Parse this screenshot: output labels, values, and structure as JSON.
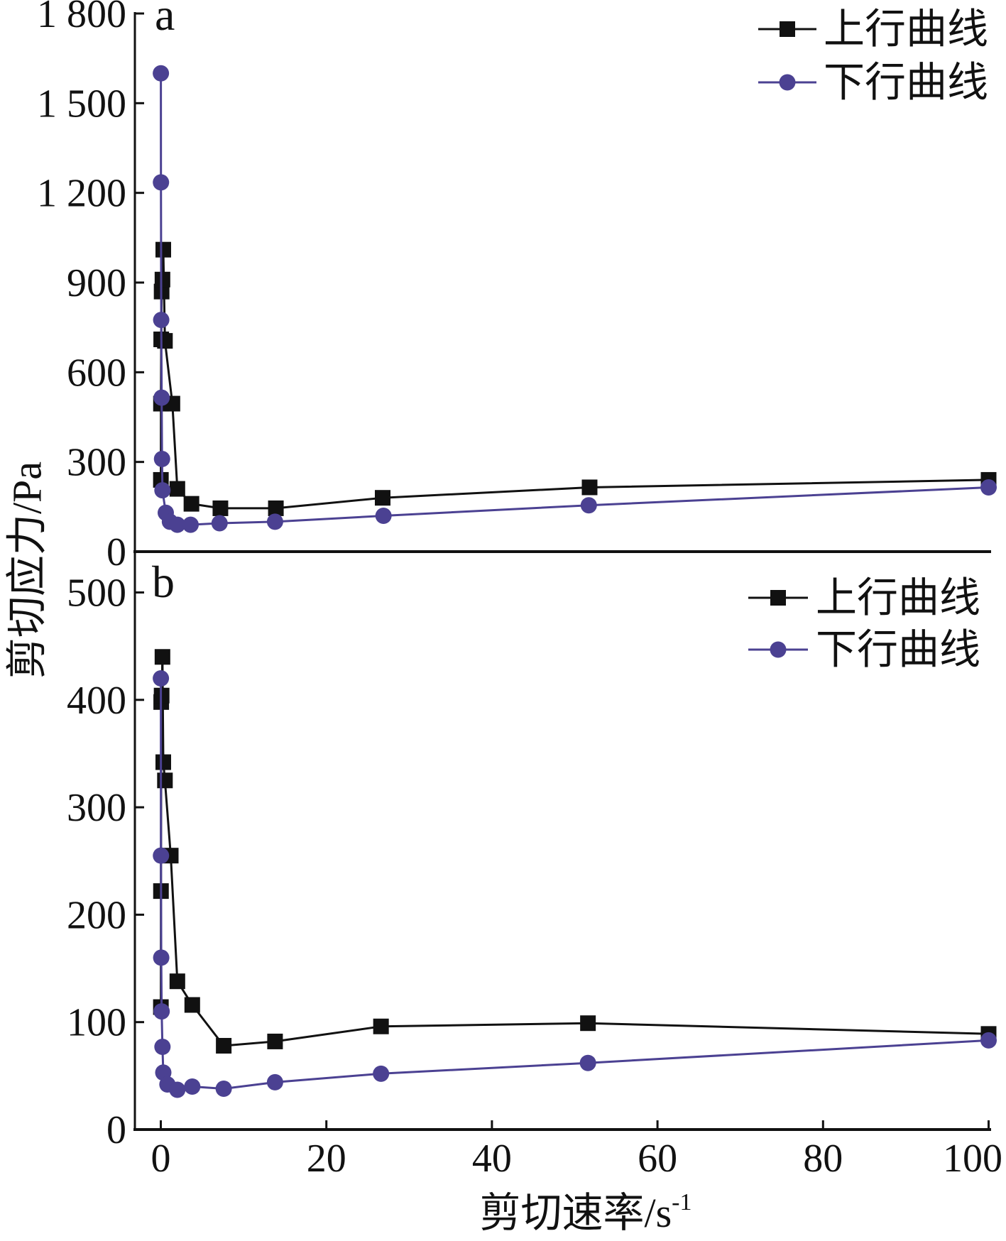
{
  "figure": {
    "ylabel": "剪切应力/Pa"
  },
  "colors": {
    "up_series": "#111111",
    "down_series": "#4b4192"
  },
  "chart_data": [
    {
      "panel": "a",
      "type": "line",
      "xlim": [
        -3.2,
        100.2
      ],
      "ylim": [
        0,
        1800
      ],
      "yticks": [
        0,
        300,
        600,
        900,
        1200,
        1500,
        1800
      ],
      "ytick_labels": [
        "0",
        "300",
        "600",
        "900",
        "1 200",
        "1 500",
        "1 800"
      ],
      "legend_position": "top-right",
      "series": [
        {
          "name": "上行曲线",
          "marker": "square",
          "x": [
            0.01,
            0.02,
            0.05,
            0.1,
            0.2,
            0.3,
            0.5,
            1.4,
            2.0,
            3.7,
            7.2,
            13.9,
            26.8,
            51.8,
            100
          ],
          "y": [
            240,
            495,
            710,
            870,
            910,
            1010,
            705,
            495,
            210,
            160,
            145,
            145,
            180,
            215,
            240
          ]
        },
        {
          "name": "下行曲线",
          "marker": "circle",
          "x": [
            0.01,
            0.02,
            0.05,
            0.1,
            0.15,
            0.2,
            0.6,
            1.1,
            2.0,
            3.6,
            7.1,
            13.8,
            26.9,
            51.7,
            100
          ],
          "y": [
            1600,
            1235,
            775,
            515,
            310,
            205,
            130,
            100,
            90,
            90,
            95,
            100,
            120,
            155,
            215
          ]
        }
      ]
    },
    {
      "panel": "b",
      "type": "line",
      "xlim": [
        -3.2,
        100.2
      ],
      "ylim": [
        0,
        538
      ],
      "yticks": [
        0,
        100,
        200,
        300,
        400,
        500
      ],
      "ytick_labels": [
        "0",
        "100",
        "200",
        "300",
        "400",
        "500"
      ],
      "xticks": [
        0,
        20,
        40,
        60,
        80,
        100
      ],
      "xtick_labels": [
        "0",
        "20",
        "40",
        "60",
        "80",
        "100"
      ],
      "xlabel": {
        "text": "剪切速率/s",
        "superscript": "-1"
      },
      "legend_position": "top-right",
      "series": [
        {
          "name": "上行曲线",
          "marker": "square",
          "x": [
            0.01,
            0.02,
            0.05,
            0.1,
            0.2,
            0.3,
            0.5,
            1.2,
            2.0,
            3.8,
            7.6,
            13.8,
            26.6,
            51.6,
            100
          ],
          "y": [
            114,
            222,
            398,
            404,
            440,
            342,
            325,
            255,
            138,
            116,
            78,
            82,
            96,
            99,
            89
          ]
        },
        {
          "name": "下行曲线",
          "marker": "circle",
          "x": [
            0.01,
            0.02,
            0.05,
            0.1,
            0.2,
            0.3,
            0.8,
            2.0,
            3.8,
            7.6,
            13.8,
            26.6,
            51.6,
            100
          ],
          "y": [
            420,
            255,
            160,
            110,
            77,
            53,
            42,
            37,
            40,
            38,
            44,
            52,
            62,
            83
          ]
        }
      ]
    }
  ]
}
